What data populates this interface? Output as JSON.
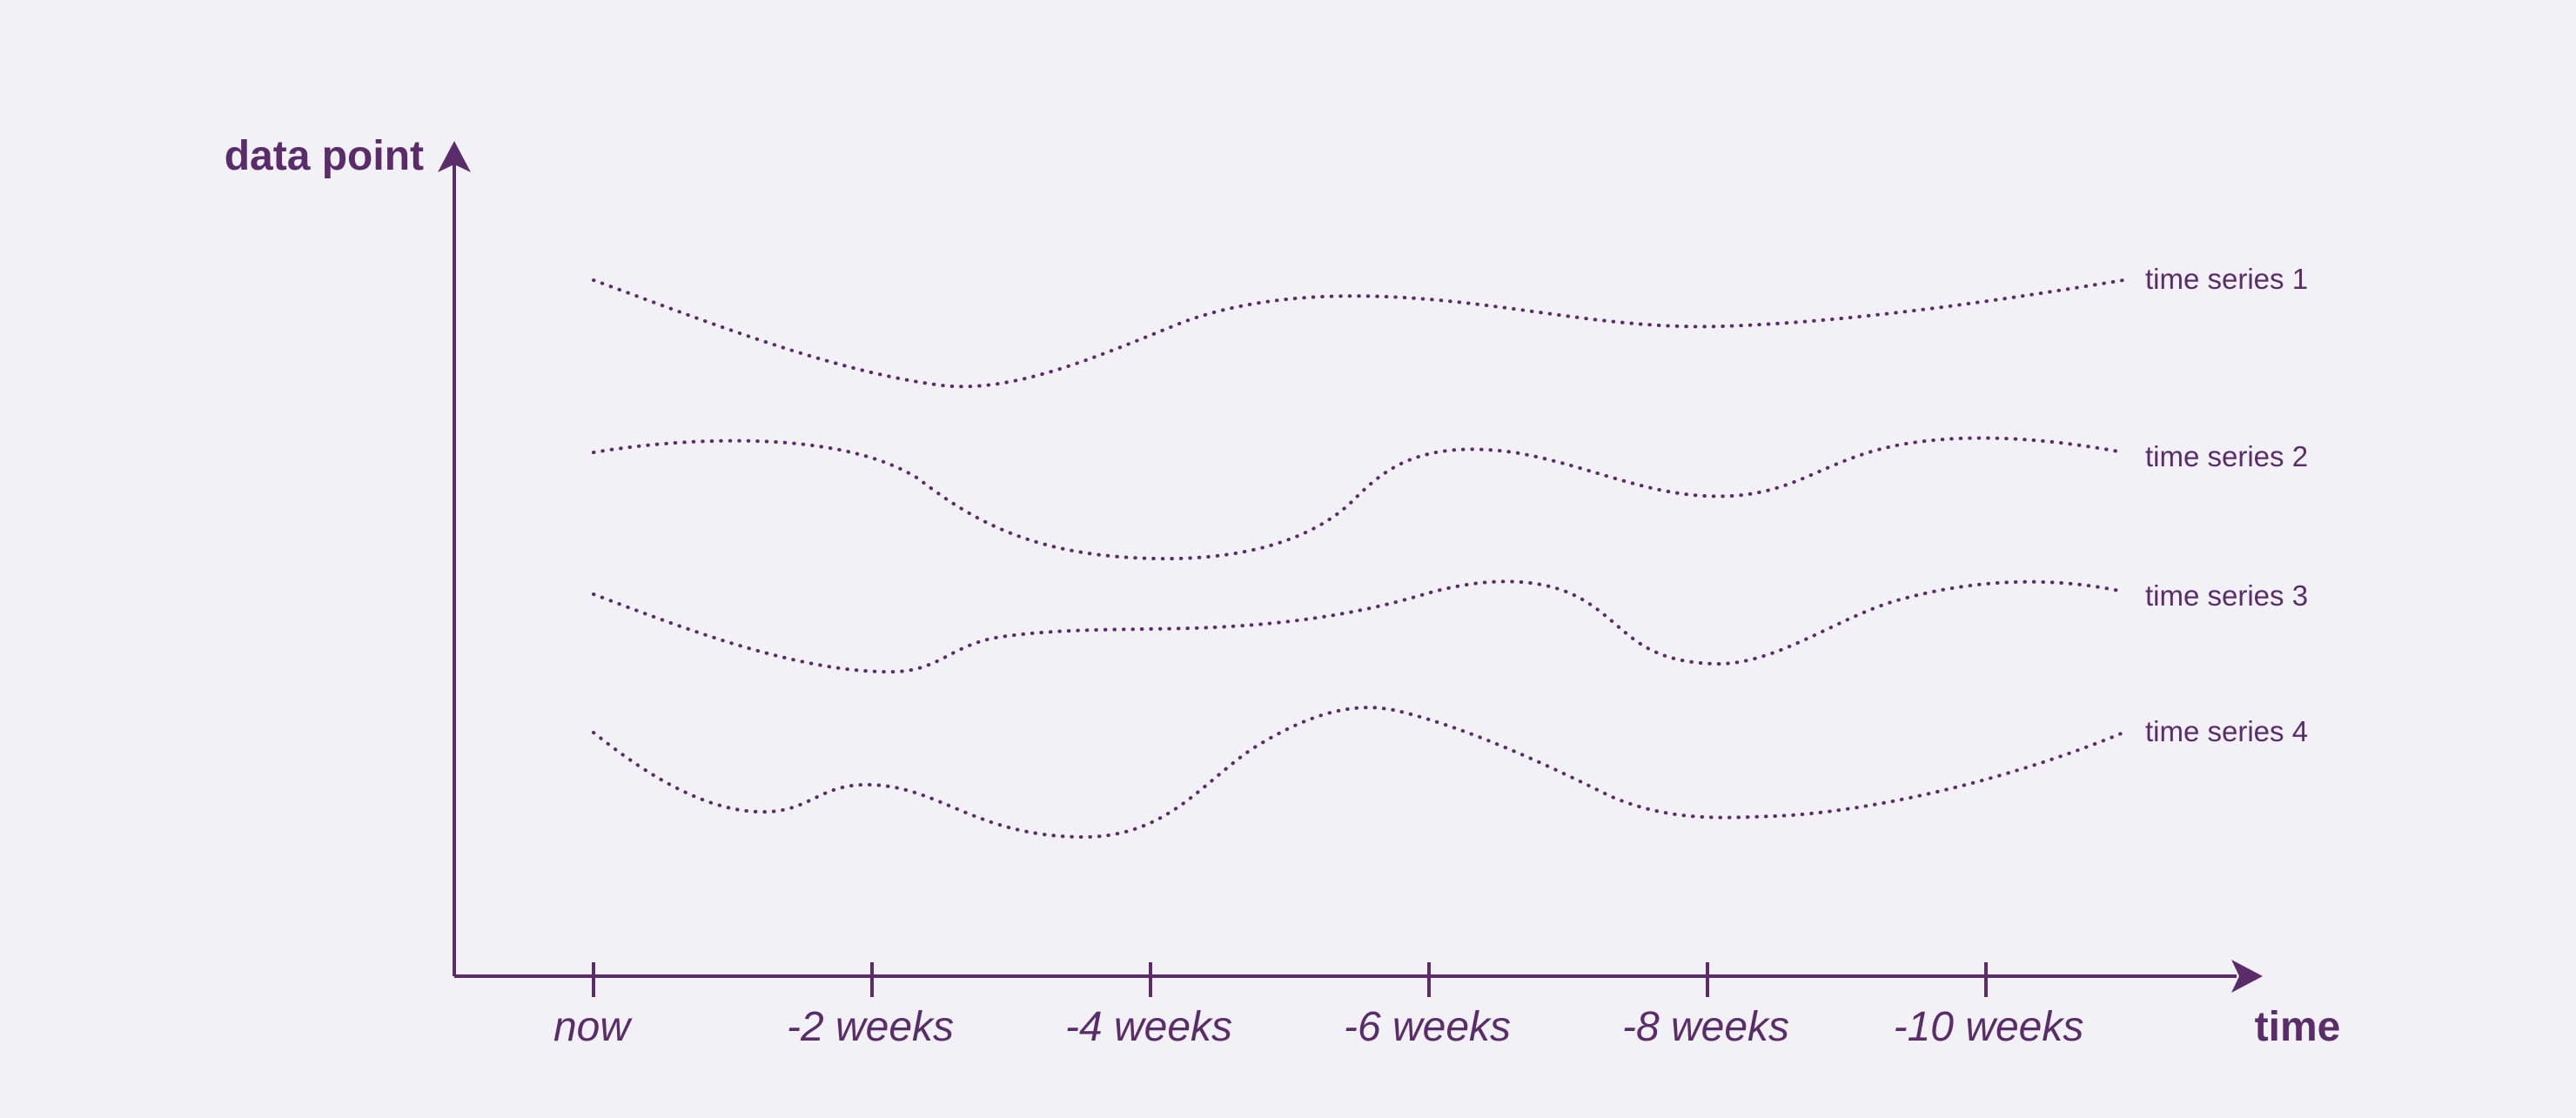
{
  "chart_data": {
    "type": "line",
    "y_axis_title": "data point",
    "x_axis_title": "time",
    "x_ticks": [
      "now",
      "-2 weeks",
      "-4 weeks",
      "-6 weeks",
      "-8 weeks",
      "-10 weeks"
    ],
    "series": [
      {
        "name": "time series 1"
      },
      {
        "name": "time series 2"
      },
      {
        "name": "time series 3"
      },
      {
        "name": "time series 4"
      }
    ],
    "line_style": "dotted",
    "color": "#5a2d6a"
  }
}
